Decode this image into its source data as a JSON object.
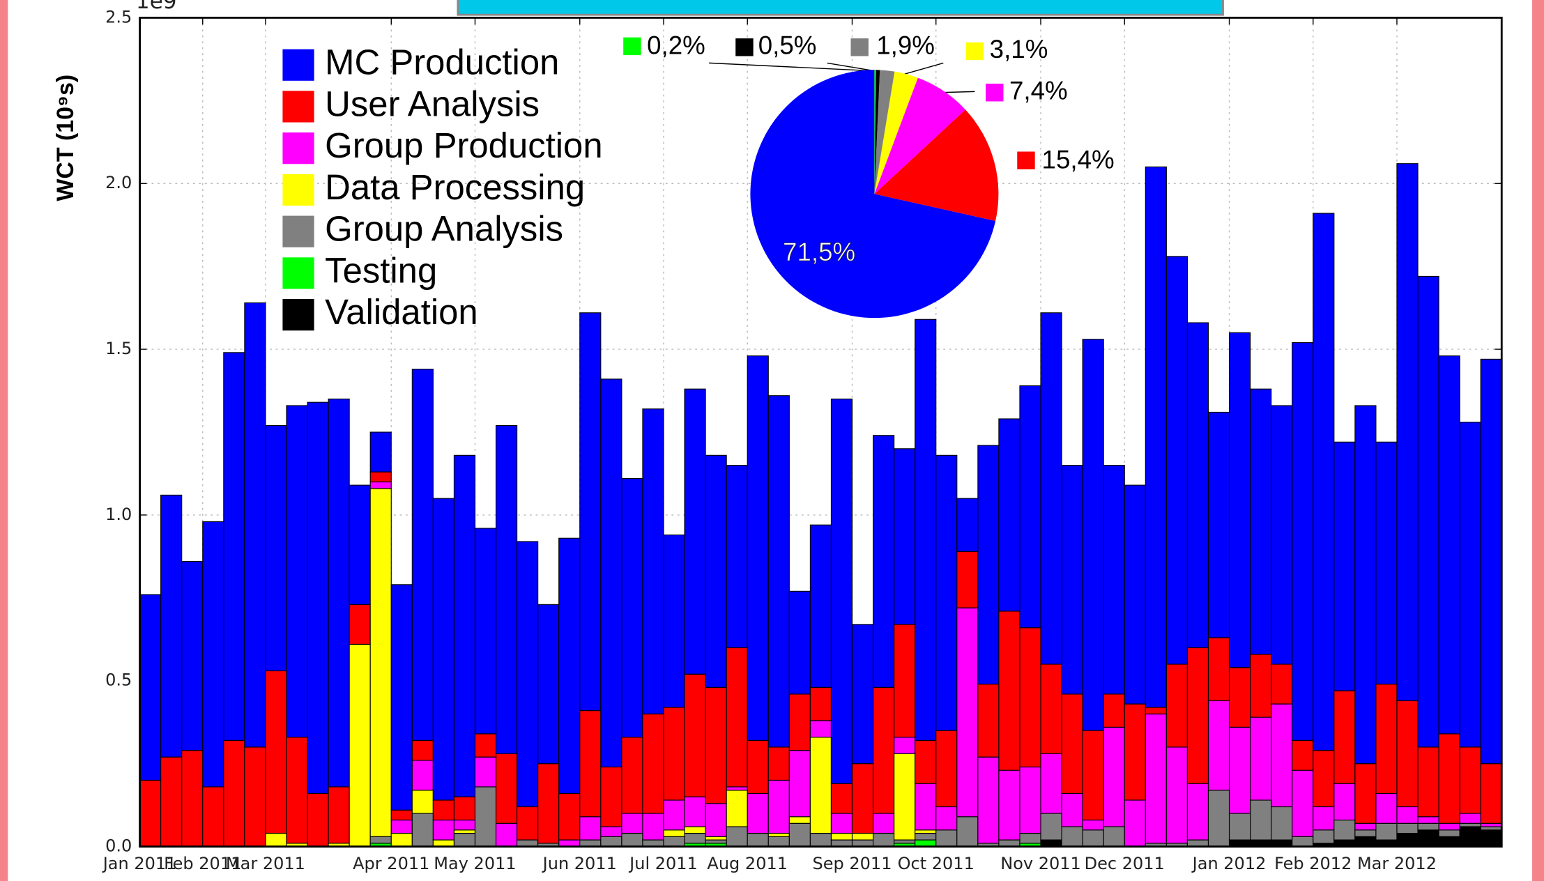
{
  "chart_data": [
    {
      "type": "bar",
      "stacked": true,
      "offset_label": "1e9",
      "y_label": "WCT (10⁹s)",
      "categories": [
        "Jan 2011",
        null,
        null,
        "Feb 2011",
        null,
        null,
        "Mar 2011",
        null,
        null,
        null,
        null,
        null,
        "Apr 2011",
        null,
        null,
        null,
        "May 2011",
        null,
        null,
        null,
        null,
        "Jun 2011",
        null,
        null,
        null,
        "Jul 2011",
        null,
        null,
        null,
        "Aug 2011",
        null,
        null,
        null,
        null,
        "Sep 2011",
        null,
        null,
        null,
        "Oct 2011",
        null,
        null,
        null,
        null,
        "Nov 2011",
        null,
        null,
        null,
        "Dec 2011",
        null,
        null,
        null,
        null,
        "Jan 2012",
        null,
        null,
        null,
        "Feb 2012",
        null,
        null,
        null,
        "Mar 2012",
        null,
        null,
        null,
        null
      ],
      "series": [
        {
          "name": "MC Production",
          "color": "#0000ff",
          "values": [
            0.56,
            0.79,
            0.57,
            0.8,
            1.17,
            1.34,
            0.74,
            1.0,
            1.18,
            1.17,
            0.36,
            0.12,
            0.68,
            1.12,
            0.91,
            1.03,
            0.62,
            0.99,
            0.8,
            0.48,
            0.77,
            1.2,
            1.17,
            0.78,
            0.92,
            0.52,
            0.86,
            0.7,
            0.55,
            1.16,
            1.06,
            0.31,
            0.49,
            1.16,
            0.42,
            0.76,
            0.53,
            1.27,
            0.83,
            0.16,
            0.72,
            0.58,
            0.73,
            1.06,
            0.69,
            1.18,
            0.69,
            0.66,
            1.63,
            1.23,
            0.98,
            0.68,
            1.01,
            0.8,
            0.78,
            1.2,
            1.62,
            0.75,
            1.08,
            0.73,
            1.62,
            1.42,
            1.14,
            0.98,
            1.22
          ]
        },
        {
          "name": "User Analysis",
          "color": "#ff0000",
          "values": [
            0.2,
            0.27,
            0.29,
            0.18,
            0.32,
            0.3,
            0.49,
            0.32,
            0.16,
            0.17,
            0.12,
            0.03,
            0.03,
            0.06,
            0.06,
            0.07,
            0.07,
            0.21,
            0.1,
            0.24,
            0.14,
            0.32,
            0.18,
            0.23,
            0.3,
            0.28,
            0.37,
            0.35,
            0.42,
            0.16,
            0.1,
            0.17,
            0.1,
            0.09,
            0.21,
            0.38,
            0.34,
            0.13,
            0.23,
            0.17,
            0.22,
            0.48,
            0.42,
            0.27,
            0.3,
            0.27,
            0.1,
            0.29,
            0.02,
            0.25,
            0.41,
            0.19,
            0.18,
            0.19,
            0.12,
            0.09,
            0.17,
            0.28,
            0.18,
            0.33,
            0.32,
            0.21,
            0.27,
            0.2,
            0.18
          ]
        },
        {
          "name": "Group Production",
          "color": "#ff00ff",
          "values": [
            0,
            0,
            0,
            0,
            0,
            0,
            0,
            0,
            0,
            0,
            0,
            0.02,
            0.04,
            0.09,
            0.06,
            0.03,
            0.09,
            0.07,
            0,
            0,
            0.02,
            0.07,
            0.03,
            0.06,
            0.08,
            0.09,
            0.09,
            0.1,
            0.01,
            0.12,
            0.16,
            0.2,
            0.05,
            0.06,
            0,
            0.06,
            0.05,
            0.14,
            0.07,
            0.63,
            0.26,
            0.21,
            0.2,
            0.18,
            0.1,
            0.03,
            0.3,
            0.14,
            0.39,
            0.29,
            0.17,
            0.27,
            0.26,
            0.25,
            0.31,
            0.2,
            0.07,
            0.11,
            0.02,
            0.09,
            0.05,
            0.02,
            0.02,
            0.03,
            0.01
          ]
        },
        {
          "name": "Data Processing",
          "color": "#ffff00",
          "values": [
            0,
            0,
            0,
            0,
            0,
            0,
            0.04,
            0.01,
            0,
            0.01,
            0.61,
            1.05,
            0.04,
            0.07,
            0.02,
            0.01,
            0,
            0,
            0,
            0,
            0,
            0,
            0,
            0,
            0,
            0.02,
            0.02,
            0.01,
            0.11,
            0,
            0.01,
            0.02,
            0.29,
            0.02,
            0.02,
            0,
            0.26,
            0.01,
            0,
            0,
            0,
            0,
            0,
            0,
            0,
            0,
            0,
            0,
            0,
            0,
            0,
            0,
            0,
            0,
            0,
            0,
            0,
            0,
            0,
            0,
            0,
            0,
            0,
            0,
            0
          ]
        },
        {
          "name": "Group Analysis",
          "color": "#808080",
          "values": [
            0,
            0,
            0,
            0,
            0,
            0,
            0,
            0,
            0,
            0,
            0,
            0.02,
            0,
            0.1,
            0,
            0.04,
            0.18,
            0,
            0.02,
            0.01,
            0,
            0.02,
            0.03,
            0.04,
            0.02,
            0.03,
            0.03,
            0.01,
            0.06,
            0.04,
            0.03,
            0.07,
            0.04,
            0.02,
            0.02,
            0.04,
            0.01,
            0.02,
            0.05,
            0.09,
            0.01,
            0.02,
            0.03,
            0.08,
            0.06,
            0.05,
            0.06,
            0,
            0.01,
            0.01,
            0.02,
            0.17,
            0.08,
            0.12,
            0.1,
            0.03,
            0.04,
            0.06,
            0.02,
            0.05,
            0.03,
            0.02,
            0.02,
            0.01,
            0.01
          ]
        },
        {
          "name": "Testing",
          "color": "#00ff00",
          "values": [
            0,
            0,
            0,
            0,
            0,
            0,
            0,
            0,
            0,
            0,
            0,
            0.01,
            0,
            0,
            0,
            0,
            0,
            0,
            0,
            0,
            0,
            0,
            0,
            0,
            0,
            0,
            0.01,
            0.01,
            0,
            0,
            0,
            0,
            0,
            0,
            0,
            0,
            0.01,
            0.02,
            0,
            0,
            0,
            0,
            0.01,
            0,
            0,
            0,
            0,
            0,
            0,
            0,
            0,
            0,
            0,
            0,
            0,
            0,
            0,
            0,
            0,
            0,
            0,
            0,
            0,
            0,
            0
          ]
        },
        {
          "name": "Validation",
          "color": "#000000",
          "values": [
            0,
            0,
            0,
            0,
            0,
            0,
            0,
            0,
            0,
            0,
            0,
            0,
            0,
            0,
            0,
            0,
            0,
            0,
            0,
            0,
            0,
            0,
            0,
            0,
            0,
            0,
            0,
            0,
            0,
            0,
            0,
            0,
            0,
            0,
            0,
            0,
            0,
            0,
            0,
            0,
            0,
            0,
            0,
            0.02,
            0,
            0,
            0,
            0,
            0,
            0,
            0,
            0,
            0.02,
            0.02,
            0.02,
            0,
            0.01,
            0.02,
            0.03,
            0.02,
            0.04,
            0.05,
            0.03,
            0.06,
            0.05
          ]
        }
      ],
      "ylim": [
        0,
        2.5
      ],
      "yticks": [
        {
          "value": 0,
          "label": "0.0"
        },
        0.5,
        {
          "value": 1,
          "label": "1.0"
        },
        1.5,
        {
          "value": 2,
          "label": "2.0"
        },
        2.5
      ],
      "grid": true,
      "legend": "upper left"
    },
    {
      "type": "pie",
      "values": [
        71.5,
        15.4,
        7.4,
        3.1,
        1.9,
        0.5,
        0.2
      ],
      "value_labels": [
        "71,5%",
        "15,4%",
        "7,4%",
        "3,1%",
        "1,9%",
        "0,5%",
        "0,2%"
      ],
      "colors": [
        "#0000ff",
        "#ff0000",
        "#ff00ff",
        "#ffff00",
        "#808080",
        "#000000",
        "#00ff00"
      ]
    }
  ]
}
